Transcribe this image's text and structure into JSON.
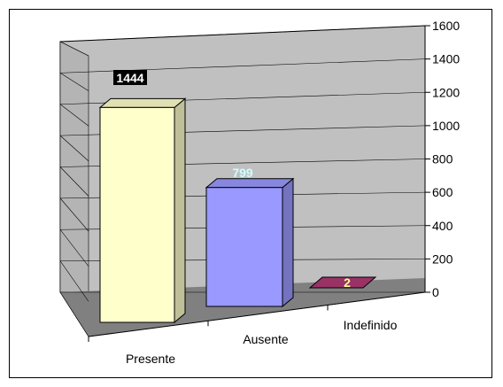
{
  "chart_data": {
    "type": "bar",
    "categories": [
      "Presente",
      "Ausente",
      "Indefinido"
    ],
    "values": [
      1444,
      799,
      2
    ],
    "data_labels": [
      "1444",
      "799",
      "2"
    ],
    "ylim": [
      0,
      1600
    ],
    "yticks": [
      0,
      200,
      400,
      600,
      800,
      1000,
      1200,
      1400,
      1600
    ],
    "ytick_labels": [
      "0",
      "200",
      "400",
      "600",
      "800",
      "1000",
      "1200",
      "1400",
      "1600"
    ],
    "y_axis_side": "right",
    "grid": true,
    "three_d": true,
    "colors": {
      "bars": [
        "#ffffcc",
        "#9999ff",
        "#993366"
      ],
      "data_label_text": [
        "#ffffff",
        "#ccffff",
        "#ffff99"
      ],
      "data_label_background": [
        "#000000",
        "",
        ""
      ],
      "back_wall": "#c0c0c0",
      "floor": "#808080",
      "gridlines": "#000000"
    }
  }
}
